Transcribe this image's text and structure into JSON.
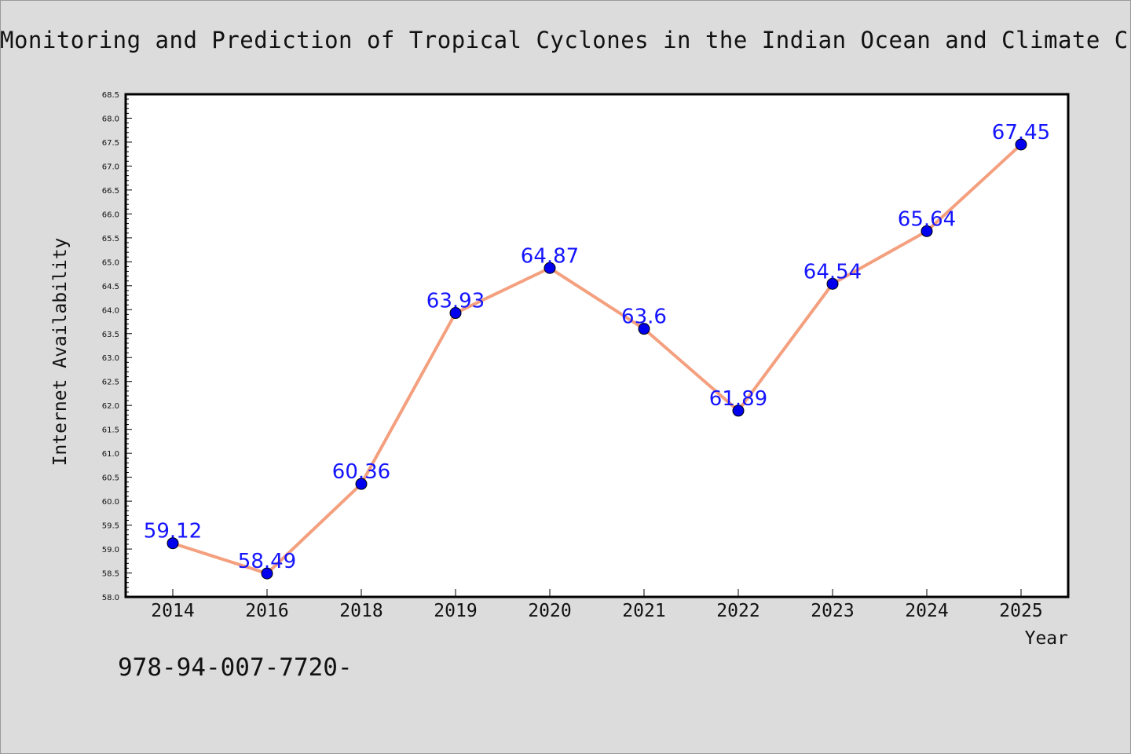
{
  "title": "Monitoring and Prediction of Tropical Cyclones in the Indian Ocean and Climate C",
  "footer_text": "978-94-007-7720-",
  "colors": {
    "background": "#dcdcdc",
    "plot_background": "#ffffff",
    "line": "#f4a07f",
    "marker": "#0000ee",
    "data_label": "#1414ff"
  },
  "chart_data": {
    "type": "line",
    "categories": [
      "2014",
      "2016",
      "2018",
      "2019",
      "2020",
      "2021",
      "2022",
      "2023",
      "2024",
      "2025"
    ],
    "series": [
      {
        "values": [
          59.12,
          58.49,
          60.36,
          63.93,
          64.87,
          63.6,
          61.89,
          64.54,
          65.64,
          67.45
        ],
        "labels": [
          "59.12",
          "58.49",
          "60.36",
          "63.93",
          "64.87",
          "63.6",
          "61.89",
          "64.54",
          "65.64",
          "67.45"
        ]
      }
    ],
    "xlabel": "Year",
    "ylabel": "Internet Availability",
    "ylim": [
      58.0,
      68.5
    ],
    "y_ticks": [
      "58.0",
      "58.5",
      "59.0",
      "59.5",
      "60.0",
      "60.5",
      "61.0",
      "61.5",
      "62.0",
      "62.5",
      "63.0",
      "63.5",
      "64.0",
      "64.5",
      "65.0",
      "65.5",
      "66.0",
      "66.5",
      "67.0",
      "67.5",
      "68.0",
      "68.5"
    ],
    "grid": false,
    "legend": "none"
  }
}
